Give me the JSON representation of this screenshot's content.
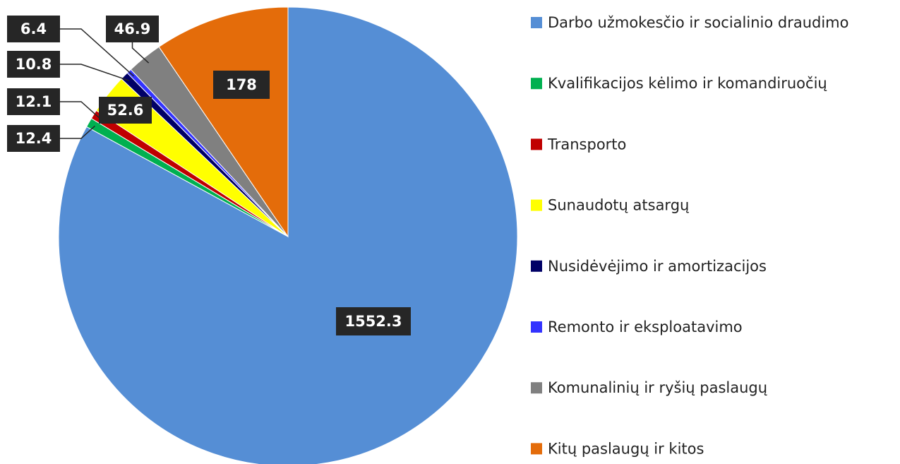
{
  "chart_data": {
    "type": "pie",
    "categories": [
      "Darbo užmokesčio ir socialinio draudimo",
      "Kvalifikacijos kėlimo ir komandiruočių",
      "Transporto",
      "Sunaudotų atsargų",
      "Nusidėvėjimo ir amortizacijos",
      "Remonto ir eksploatavimo",
      "Komunalinių ir ryšių paslaugų",
      "Kitų paslaugų ir kitos"
    ],
    "values": [
      1552.3,
      12.4,
      12.1,
      52.6,
      10.8,
      6.4,
      46.9,
      178
    ],
    "colors": [
      "#558ED5",
      "#00B050",
      "#C00000",
      "#FFFF00",
      "#000066",
      "#3333FF",
      "#808080",
      "#E46C0A"
    ],
    "legend": "right"
  }
}
